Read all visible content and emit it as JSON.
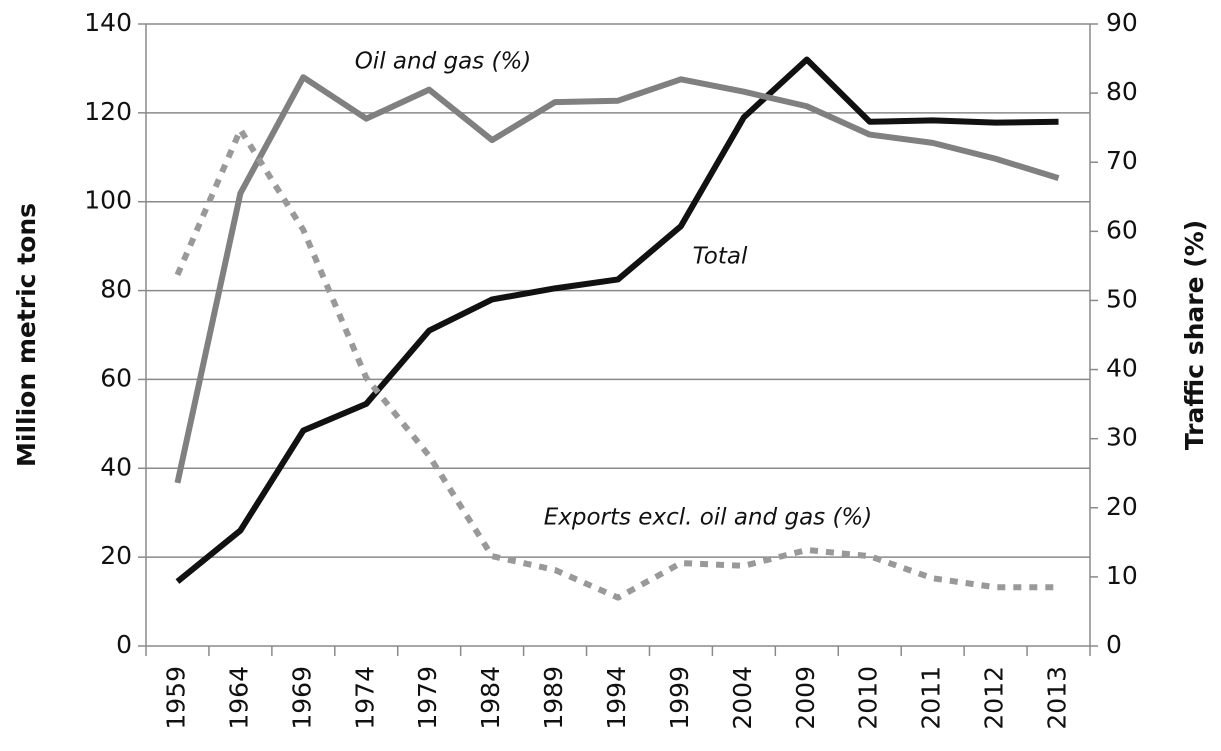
{
  "chart_data": {
    "type": "line",
    "categories": [
      "1959",
      "1964",
      "1969",
      "1974",
      "1979",
      "1984",
      "1989",
      "1994",
      "1999",
      "2004",
      "2009",
      "2010",
      "2011",
      "2012",
      "2013"
    ],
    "y_label": "Million metric tons",
    "y2_label": "Traffic share (%)",
    "ylim": [
      0,
      140
    ],
    "yticks": [
      0,
      20,
      40,
      60,
      80,
      100,
      120,
      140
    ],
    "y2lim": [
      0,
      90
    ],
    "y2ticks": [
      0,
      10,
      20,
      30,
      40,
      50,
      60,
      70,
      80,
      90
    ],
    "grid": true,
    "series": [
      {
        "name": "Total",
        "color": "#111111",
        "style": "solid",
        "values": [
          14.5,
          26,
          48.5,
          54.5,
          71,
          78,
          80.5,
          82.5,
          94.5,
          119,
          132,
          118,
          118.3,
          117.8,
          118
        ]
      },
      {
        "name": "Oil and gas (%)",
        "color": "#808080",
        "style": "solid",
        "axis": "y2",
        "values": [
          23.6,
          65.5,
          82.3,
          76.3,
          80.5,
          73.2,
          78.7,
          78.9,
          82,
          80.2,
          78.1,
          74,
          72.8,
          70.5,
          67.7
        ]
      },
      {
        "name": "Exports excl. oil and gas (%)",
        "color": "#999999",
        "style": "dotted",
        "axis": "y2",
        "values": [
          53.7,
          74.7,
          60.2,
          38.8,
          27.5,
          13,
          11,
          7,
          12,
          11.6,
          13.9,
          13,
          9.8,
          8.5,
          8.5
        ]
      }
    ]
  }
}
